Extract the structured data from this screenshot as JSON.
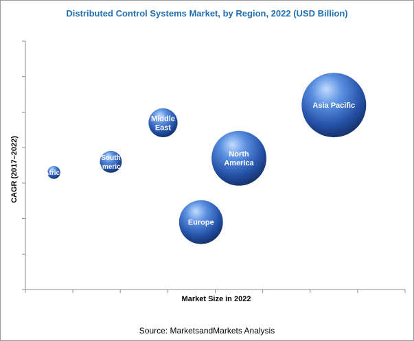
{
  "chart_data": {
    "type": "scatter",
    "variant": "bubble",
    "title": "Distributed Control Systems Market, by Region, 2022 (USD Billion)",
    "xlabel": "Market Size in 2022",
    "ylabel": "CAGR (2017–2022)",
    "grid": false,
    "legend": "none",
    "x_ticks": 8,
    "y_ticks": 7,
    "xlim": [
      0,
      8
    ],
    "ylim": [
      0,
      7
    ],
    "bubble_color": "#2f63b8",
    "points": [
      {
        "label": "Africa",
        "label_lines": [
          "Africa"
        ],
        "x": 0.6,
        "y": 3.3,
        "size": 0.2
      },
      {
        "label": "South America",
        "label_lines": [
          "South",
          "America"
        ],
        "x": 1.8,
        "y": 3.6,
        "size": 0.34
      },
      {
        "label": "Middle East",
        "label_lines": [
          "Middle",
          "East"
        ],
        "x": 2.9,
        "y": 4.7,
        "size": 0.45
      },
      {
        "label": "Europe",
        "label_lines": [
          "Europe"
        ],
        "x": 3.7,
        "y": 1.9,
        "size": 0.68
      },
      {
        "label": "North America",
        "label_lines": [
          "North",
          "America"
        ],
        "x": 4.5,
        "y": 3.7,
        "size": 0.85
      },
      {
        "label": "Asia Pacific",
        "label_lines": [
          "Asia Pacific"
        ],
        "x": 6.5,
        "y": 5.2,
        "size": 1.0
      }
    ]
  },
  "source_note": "Source: MarketsandMarkets Analysis"
}
